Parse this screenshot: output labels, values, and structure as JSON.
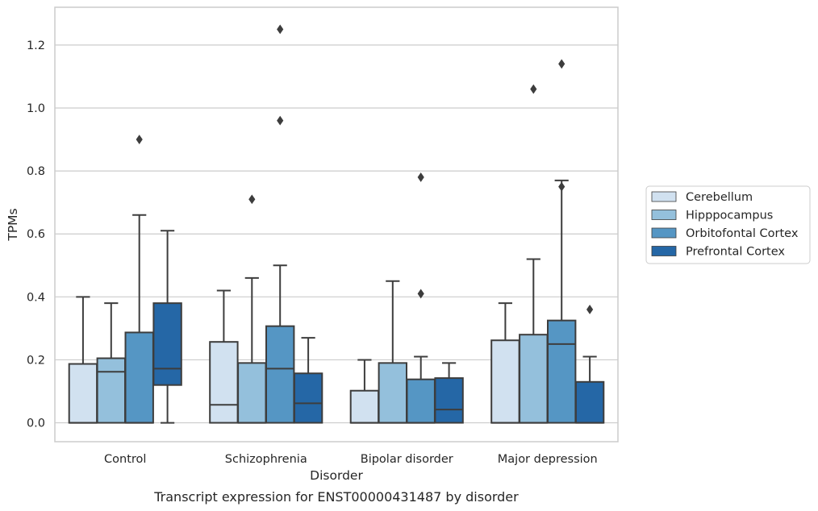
{
  "caption": "Transcript expression for ENST00000431487 by disorder",
  "chart_data": {
    "type": "box",
    "xlabel": "Disorder",
    "ylabel": "TPMs",
    "ylim": [
      -0.06,
      1.32
    ],
    "yticks": [
      "0.0",
      "0.2",
      "0.4",
      "0.6",
      "0.8",
      "1.0",
      "1.2"
    ],
    "grid": "horizontal",
    "legend_position": "right",
    "categories": [
      "Control",
      "Schizophrenia",
      "Bipolar disorder",
      "Major depression"
    ],
    "series": [
      {
        "name": "Cerebellum",
        "color": "#d1e1f0",
        "boxes": [
          {
            "whisker_low": 0,
            "q1": 0,
            "median": 0,
            "q3": 0.187,
            "whisker_high": 0.4,
            "outliers": []
          },
          {
            "whisker_low": 0,
            "q1": 0,
            "median": 0.057,
            "q3": 0.257,
            "whisker_high": 0.42,
            "outliers": []
          },
          {
            "whisker_low": 0,
            "q1": 0,
            "median": 0,
            "q3": 0.102,
            "whisker_high": 0.2,
            "outliers": []
          },
          {
            "whisker_low": 0,
            "q1": 0,
            "median": 0,
            "q3": 0.262,
            "whisker_high": 0.38,
            "outliers": []
          }
        ]
      },
      {
        "name": "Hipppocampus",
        "color": "#94c0dc",
        "boxes": [
          {
            "whisker_low": 0,
            "q1": 0,
            "median": 0.162,
            "q3": 0.205,
            "whisker_high": 0.38,
            "outliers": []
          },
          {
            "whisker_low": 0,
            "q1": 0,
            "median": 0,
            "q3": 0.19,
            "whisker_high": 0.46,
            "outliers": [
              0.71
            ]
          },
          {
            "whisker_low": 0,
            "q1": 0,
            "median": 0,
            "q3": 0.19,
            "whisker_high": 0.45,
            "outliers": []
          },
          {
            "whisker_low": 0,
            "q1": 0,
            "median": 0,
            "q3": 0.28,
            "whisker_high": 0.52,
            "outliers": [
              1.06
            ]
          }
        ]
      },
      {
        "name": "Orbitofontal Cortex",
        "color": "#5596c4",
        "boxes": [
          {
            "whisker_low": 0,
            "q1": 0,
            "median": 0,
            "q3": 0.287,
            "whisker_high": 0.66,
            "outliers": [
              0.9
            ]
          },
          {
            "whisker_low": 0,
            "q1": 0,
            "median": 0.172,
            "q3": 0.307,
            "whisker_high": 0.5,
            "outliers": [
              0.96,
              1.25
            ]
          },
          {
            "whisker_low": 0,
            "q1": 0,
            "median": 0,
            "q3": 0.138,
            "whisker_high": 0.21,
            "outliers": [
              0.41,
              0.78
            ]
          },
          {
            "whisker_low": 0,
            "q1": 0,
            "median": 0.25,
            "q3": 0.325,
            "whisker_high": 0.77,
            "outliers": [
              0.75,
              1.14
            ]
          }
        ]
      },
      {
        "name": "Prefrontal Cortex",
        "color": "#2567a6",
        "boxes": [
          {
            "whisker_low": 0,
            "q1": 0.12,
            "median": 0.172,
            "q3": 0.38,
            "whisker_high": 0.61,
            "outliers": []
          },
          {
            "whisker_low": 0,
            "q1": 0,
            "median": 0.062,
            "q3": 0.157,
            "whisker_high": 0.27,
            "outliers": []
          },
          {
            "whisker_low": 0,
            "q1": 0,
            "median": 0.042,
            "q3": 0.142,
            "whisker_high": 0.19,
            "outliers": []
          },
          {
            "whisker_low": 0,
            "q1": 0,
            "median": 0,
            "q3": 0.13,
            "whisker_high": 0.21,
            "outliers": [
              0.36
            ]
          }
        ]
      }
    ]
  }
}
